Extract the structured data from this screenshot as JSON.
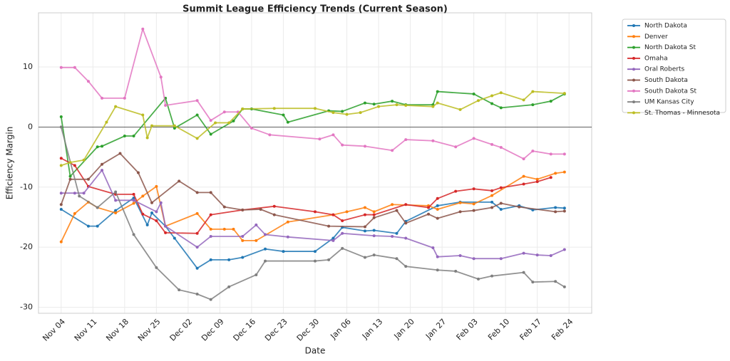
{
  "chart_data": {
    "type": "line",
    "title": "Summit League Efficiency Trends (Current Season)",
    "x_label": "Date",
    "y_label": "Efficiency Margin",
    "xlim": [
      "Oct 30",
      "Mar 01"
    ],
    "xticks": [
      "Nov 04",
      "Nov 11",
      "Nov 18",
      "Nov 25",
      "Dec 02",
      "Dec 09",
      "Dec 16",
      "Dec 23",
      "Dec 30",
      "Jan 06",
      "Jan 13",
      "Jan 20",
      "Jan 27",
      "Feb 03",
      "Feb 10",
      "Feb 17",
      "Feb 24"
    ],
    "ylim": [
      -31,
      19
    ],
    "yticks": [
      -30,
      -20,
      -10,
      0,
      10
    ],
    "grid": true,
    "reference_line": 0,
    "legend": "outside-upper-right",
    "series": [
      {
        "name": "North Dakota",
        "color": "#1f77b4",
        "x": [
          "Nov 04",
          "Nov 10",
          "Nov 12",
          "Nov 16",
          "Nov 20",
          "Nov 23",
          "Nov 24",
          "Nov 27",
          "Nov 29",
          "Dec 04",
          "Dec 07",
          "Dec 11",
          "Dec 14",
          "Dec 19",
          "Dec 23",
          "Dec 30",
          "Jan 03",
          "Jan 05",
          "Jan 10",
          "Jan 12",
          "Jan 17",
          "Jan 19",
          "Jan 26",
          "Jan 31",
          "Feb 07",
          "Feb 09",
          "Feb 13",
          "Feb 16",
          "Feb 21",
          "Feb 23"
        ],
        "values": [
          -13.7,
          -16.5,
          -16.5,
          -13.9,
          -11.8,
          -16.3,
          -14.3,
          -16.5,
          -18.5,
          -23.5,
          -22.1,
          -22.1,
          -21.7,
          -20.3,
          -20.7,
          -20.7,
          -18.5,
          -16.7,
          -17.3,
          -17.2,
          -17.7,
          -15.7,
          -13.1,
          -12.5,
          -12.5,
          -13.7,
          -13.1,
          -13.8,
          -13.4,
          -13.5
        ]
      },
      {
        "name": "Denver",
        "color": "#ff7f0e",
        "x": [
          "Nov 04",
          "Nov 07",
          "Nov 10",
          "Nov 12",
          "Nov 16",
          "Nov 20",
          "Nov 22",
          "Nov 25",
          "Nov 27",
          "Dec 04",
          "Dec 07",
          "Dec 10",
          "Dec 12",
          "Dec 14",
          "Dec 17",
          "Dec 24",
          "Jan 03",
          "Jan 06",
          "Jan 10",
          "Jan 12",
          "Jan 16",
          "Jan 24",
          "Jan 26",
          "Jan 31",
          "Feb 03",
          "Feb 07",
          "Feb 14",
          "Feb 17",
          "Feb 21",
          "Feb 23"
        ],
        "values": [
          -19.1,
          -14.4,
          -12.5,
          -13.4,
          -14.3,
          -12.7,
          -11.5,
          -9.9,
          -16.5,
          -14.4,
          -17.0,
          -17.0,
          -17.0,
          -18.9,
          -18.9,
          -15.8,
          -14.6,
          -14.1,
          -13.4,
          -14.1,
          -12.9,
          -13.1,
          -13.7,
          -12.6,
          -12.8,
          -11.4,
          -8.2,
          -8.7,
          -7.7,
          -7.5
        ]
      },
      {
        "name": "North Dakota St",
        "color": "#2ca02c",
        "x": [
          "Nov 04",
          "Nov 06",
          "Nov 12",
          "Nov 13",
          "Nov 18",
          "Nov 20",
          "Nov 27",
          "Nov 29",
          "Dec 04",
          "Dec 07",
          "Dec 12",
          "Dec 14",
          "Dec 16",
          "Dec 23",
          "Dec 24",
          "Jan 02",
          "Jan 05",
          "Jan 10",
          "Jan 12",
          "Jan 16",
          "Jan 19",
          "Jan 25",
          "Jan 26",
          "Feb 03",
          "Feb 07",
          "Feb 09",
          "Feb 16",
          "Feb 20",
          "Feb 23"
        ],
        "values": [
          1.7,
          -8.2,
          -3.3,
          -3.2,
          -1.5,
          -1.5,
          4.8,
          -0.2,
          2.0,
          -1.2,
          1.0,
          3.0,
          3.0,
          2.0,
          0.8,
          2.7,
          2.6,
          4.0,
          3.8,
          4.3,
          3.7,
          3.7,
          5.9,
          5.5,
          3.9,
          3.2,
          3.7,
          4.3,
          5.5
        ]
      },
      {
        "name": "Omaha",
        "color": "#d62728",
        "x": [
          "Nov 04",
          "Nov 07",
          "Nov 10",
          "Nov 16",
          "Nov 20",
          "Nov 22",
          "Nov 25",
          "Nov 27",
          "Dec 04",
          "Dec 07",
          "Dec 14",
          "Dec 21",
          "Dec 30",
          "Jan 03",
          "Jan 05",
          "Jan 10",
          "Jan 12",
          "Jan 19",
          "Jan 24",
          "Jan 26",
          "Jan 30",
          "Feb 03",
          "Feb 07",
          "Feb 09",
          "Feb 14",
          "Feb 17",
          "Feb 20"
        ],
        "values": [
          -5.2,
          -6.4,
          -9.9,
          -11.2,
          -11.2,
          -14.5,
          -15.6,
          -17.6,
          -17.7,
          -14.6,
          -13.8,
          -13.2,
          -14.1,
          -14.6,
          -15.6,
          -14.6,
          -14.6,
          -12.9,
          -13.4,
          -11.9,
          -10.7,
          -10.3,
          -10.6,
          -10.1,
          -9.5,
          -9.1,
          -8.4
        ]
      },
      {
        "name": "Oral Roberts",
        "color": "#9467bd",
        "x": [
          "Nov 04",
          "Nov 07",
          "Nov 09",
          "Nov 13",
          "Nov 16",
          "Nov 20",
          "Nov 25",
          "Nov 26",
          "Nov 27",
          "Dec 04",
          "Dec 07",
          "Dec 14",
          "Dec 17",
          "Dec 19",
          "Dec 24",
          "Jan 03",
          "Jan 05",
          "Jan 12",
          "Jan 16",
          "Jan 19",
          "Jan 25",
          "Jan 26",
          "Jan 31",
          "Feb 03",
          "Feb 09",
          "Feb 14",
          "Feb 17",
          "Feb 20",
          "Feb 23"
        ],
        "values": [
          -11.0,
          -11.0,
          -11.0,
          -7.2,
          -12.2,
          -12.2,
          -14.1,
          -12.6,
          -16.5,
          -20.0,
          -18.2,
          -18.2,
          -16.3,
          -17.9,
          -18.3,
          -18.9,
          -17.7,
          -18.1,
          -18.2,
          -18.5,
          -20.1,
          -21.6,
          -21.4,
          -21.9,
          -21.9,
          -21.0,
          -21.3,
          -21.4,
          -20.4
        ]
      },
      {
        "name": "South Dakota",
        "color": "#8c564b",
        "x": [
          "Nov 04",
          "Nov 06",
          "Nov 10",
          "Nov 13",
          "Nov 17",
          "Nov 21",
          "Nov 24",
          "Nov 30",
          "Dec 04",
          "Dec 07",
          "Dec 10",
          "Dec 14",
          "Dec 18",
          "Dec 21",
          "Jan 02",
          "Jan 10",
          "Jan 12",
          "Jan 17",
          "Jan 19",
          "Jan 24",
          "Jan 26",
          "Jan 31",
          "Feb 03",
          "Feb 07",
          "Feb 09",
          "Feb 13",
          "Feb 21",
          "Feb 23"
        ],
        "values": [
          -12.9,
          -8.7,
          -8.7,
          -6.2,
          -4.4,
          -7.6,
          -12.6,
          -9.0,
          -10.9,
          -10.9,
          -13.3,
          -13.8,
          -13.7,
          -14.6,
          -16.5,
          -16.6,
          -15.1,
          -13.9,
          -16.0,
          -14.5,
          -15.2,
          -14.1,
          -13.9,
          -13.4,
          -12.7,
          -13.3,
          -14.1,
          -14.0
        ]
      },
      {
        "name": "South Dakota St",
        "color": "#e377c2",
        "x": [
          "Nov 04",
          "Nov 07",
          "Nov 10",
          "Nov 13",
          "Nov 18",
          "Nov 22",
          "Nov 26",
          "Nov 27",
          "Dec 04",
          "Dec 07",
          "Dec 10",
          "Dec 13",
          "Dec 16",
          "Dec 20",
          "Dec 31",
          "Jan 03",
          "Jan 05",
          "Jan 10",
          "Jan 16",
          "Jan 19",
          "Jan 25",
          "Jan 30",
          "Feb 03",
          "Feb 07",
          "Feb 09",
          "Feb 14",
          "Feb 16",
          "Feb 20",
          "Feb 23"
        ],
        "values": [
          9.9,
          9.9,
          7.6,
          4.8,
          4.8,
          16.3,
          8.3,
          3.6,
          4.4,
          1.1,
          2.5,
          2.5,
          -0.2,
          -1.3,
          -2.0,
          -1.3,
          -3.0,
          -3.2,
          -3.9,
          -2.1,
          -2.3,
          -3.3,
          -1.9,
          -2.9,
          -3.4,
          -5.3,
          -4.0,
          -4.5,
          -4.5
        ]
      },
      {
        "name": "UM Kansas City",
        "color": "#7f7f7f",
        "x": [
          "Nov 04",
          "Nov 08",
          "Nov 12",
          "Nov 16",
          "Nov 20",
          "Nov 25",
          "Nov 30",
          "Dec 04",
          "Dec 07",
          "Dec 11",
          "Dec 17",
          "Dec 19",
          "Dec 30",
          "Jan 02",
          "Jan 05",
          "Jan 10",
          "Jan 12",
          "Jan 17",
          "Jan 19",
          "Jan 26",
          "Jan 30",
          "Feb 04",
          "Feb 07",
          "Feb 14",
          "Feb 16",
          "Feb 21",
          "Feb 23"
        ],
        "values": [
          0.0,
          -11.5,
          -13.4,
          -10.8,
          -17.9,
          -23.4,
          -27.1,
          -27.8,
          -28.7,
          -26.6,
          -24.6,
          -22.3,
          -22.3,
          -22.1,
          -20.2,
          -21.7,
          -21.3,
          -21.9,
          -23.2,
          -23.8,
          -24.0,
          -25.3,
          -24.8,
          -24.2,
          -25.8,
          -25.7,
          -26.6
        ]
      },
      {
        "name": "St. Thomas - Minnesota",
        "color": "#bcbd22",
        "x": [
          "Nov 04",
          "Nov 06",
          "Nov 09",
          "Nov 14",
          "Nov 16",
          "Nov 22",
          "Nov 23",
          "Nov 24",
          "Nov 29",
          "Dec 04",
          "Dec 08",
          "Dec 11",
          "Dec 14",
          "Dec 21",
          "Dec 30",
          "Jan 03",
          "Jan 06",
          "Jan 09",
          "Jan 13",
          "Jan 17",
          "Jan 19",
          "Jan 25",
          "Jan 26",
          "Jan 31",
          "Feb 04",
          "Feb 07",
          "Feb 09",
          "Feb 14",
          "Feb 16",
          "Feb 23"
        ],
        "values": [
          -6.4,
          -5.9,
          -5.5,
          0.8,
          3.4,
          2.0,
          -1.8,
          0.2,
          0.2,
          -1.9,
          0.7,
          0.7,
          3.0,
          3.1,
          3.1,
          2.4,
          2.1,
          2.4,
          3.4,
          3.7,
          3.6,
          3.4,
          4.0,
          2.9,
          4.4,
          5.2,
          5.7,
          4.5,
          5.9,
          5.6
        ]
      }
    ]
  }
}
